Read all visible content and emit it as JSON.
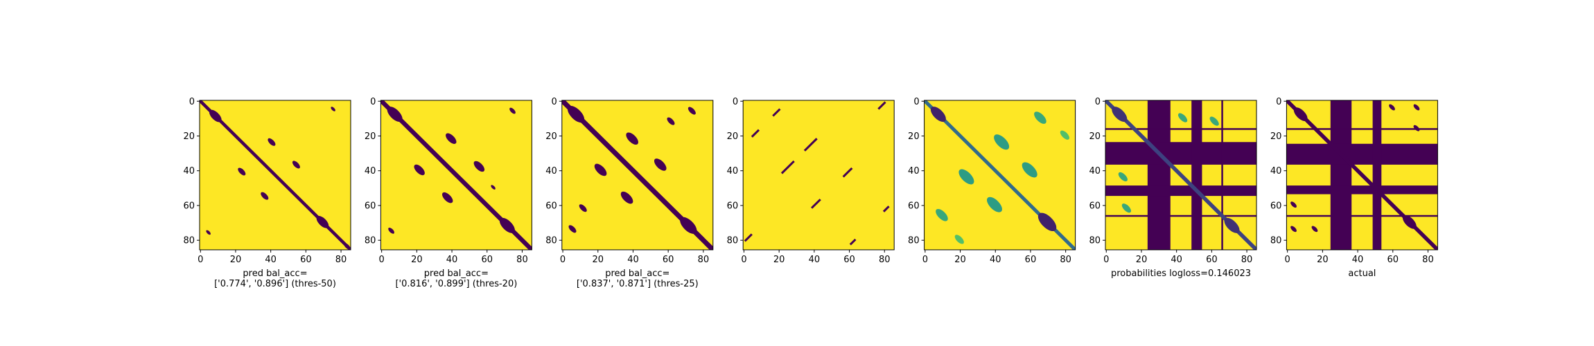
{
  "colors": {
    "low": "#440154",
    "high": "#fde725",
    "axis": "#000000"
  },
  "chart_data": [
    {
      "type": "heatmap",
      "name": "pred-thres-50",
      "xlabel": "pred bal_acc=\n['0.774', '0.896'] (thres-50)",
      "xticks": [
        0,
        20,
        40,
        60,
        80
      ],
      "yticks": [
        0,
        20,
        40,
        60,
        80
      ],
      "xlim": [
        0,
        86
      ],
      "ylim": [
        86,
        0
      ],
      "colormap": "viridis",
      "features": [
        {
          "kind": "diag",
          "offset": 0,
          "width": 1.8
        },
        {
          "kind": "blob",
          "x": 9,
          "y": 9,
          "r": 4
        },
        {
          "kind": "blob",
          "x": 70,
          "y": 70,
          "r": 4
        },
        {
          "kind": "blob",
          "x": 41,
          "y": 24,
          "r": 2.5
        },
        {
          "kind": "blob",
          "x": 24,
          "y": 41,
          "r": 2.5
        },
        {
          "kind": "blob",
          "x": 55,
          "y": 37,
          "r": 2.5
        },
        {
          "kind": "blob",
          "x": 37,
          "y": 55,
          "r": 2.5
        },
        {
          "kind": "blob",
          "x": 76,
          "y": 5,
          "r": 1.5
        },
        {
          "kind": "blob",
          "x": 5,
          "y": 76,
          "r": 1.5
        },
        {
          "kind": "blob",
          "x": 84,
          "y": 84,
          "r": 2
        }
      ]
    },
    {
      "type": "heatmap",
      "name": "pred-thres-20",
      "xlabel": "pred bal_acc=\n['0.816', '0.899'] (thres-20)",
      "xticks": [
        0,
        20,
        40,
        60,
        80
      ],
      "yticks": [
        0,
        20,
        40,
        60,
        80
      ],
      "xlim": [
        0,
        86
      ],
      "ylim": [
        86,
        0
      ],
      "colormap": "viridis",
      "features": [
        {
          "kind": "diag",
          "offset": 0,
          "width": 2.5
        },
        {
          "kind": "blob",
          "x": 8,
          "y": 8,
          "r": 5
        },
        {
          "kind": "blob",
          "x": 72,
          "y": 72,
          "r": 5
        },
        {
          "kind": "blob",
          "x": 40,
          "y": 22,
          "r": 3.5
        },
        {
          "kind": "blob",
          "x": 22,
          "y": 40,
          "r": 3.5
        },
        {
          "kind": "blob",
          "x": 56,
          "y": 38,
          "r": 3.5
        },
        {
          "kind": "blob",
          "x": 38,
          "y": 56,
          "r": 3.5
        },
        {
          "kind": "blob",
          "x": 75,
          "y": 6,
          "r": 2
        },
        {
          "kind": "blob",
          "x": 6,
          "y": 75,
          "r": 2
        },
        {
          "kind": "blob",
          "x": 64,
          "y": 50,
          "r": 1.5
        }
      ]
    },
    {
      "type": "heatmap",
      "name": "pred-thres-25",
      "xlabel": "pred bal_acc=\n['0.837', '0.871'] (thres-25)",
      "xticks": [
        0,
        20,
        40,
        60,
        80
      ],
      "yticks": [
        0,
        20,
        40,
        60,
        80
      ],
      "xlim": [
        0,
        86
      ],
      "ylim": [
        86,
        0
      ],
      "colormap": "viridis",
      "features": [
        {
          "kind": "diag",
          "offset": 0,
          "width": 2.8
        },
        {
          "kind": "blob",
          "x": 8,
          "y": 8,
          "r": 5.5
        },
        {
          "kind": "blob",
          "x": 72,
          "y": 72,
          "r": 5.5
        },
        {
          "kind": "blob",
          "x": 40,
          "y": 22,
          "r": 4
        },
        {
          "kind": "blob",
          "x": 22,
          "y": 40,
          "r": 4
        },
        {
          "kind": "blob",
          "x": 56,
          "y": 37,
          "r": 4
        },
        {
          "kind": "blob",
          "x": 37,
          "y": 56,
          "r": 4
        },
        {
          "kind": "blob",
          "x": 74,
          "y": 6,
          "r": 2.5
        },
        {
          "kind": "blob",
          "x": 6,
          "y": 74,
          "r": 2.5
        },
        {
          "kind": "blob",
          "x": 12,
          "y": 62,
          "r": 2.5
        },
        {
          "kind": "blob",
          "x": 62,
          "y": 12,
          "r": 2.5
        }
      ]
    },
    {
      "type": "heatmap",
      "name": "pred-sparse",
      "xlabel": "",
      "xticks": [
        0,
        20,
        40,
        60,
        80
      ],
      "yticks": [
        0,
        20,
        40,
        60,
        80
      ],
      "xlim": [
        0,
        86
      ],
      "ylim": [
        86,
        0
      ],
      "colormap": "viridis",
      "features": [
        {
          "kind": "seg",
          "x1": 5,
          "y1": 21,
          "x2": 9,
          "y2": 17
        },
        {
          "kind": "seg",
          "x1": 21,
          "y1": 5,
          "x2": 17,
          "y2": 9
        },
        {
          "kind": "seg",
          "x1": 35,
          "y1": 29,
          "x2": 42,
          "y2": 22
        },
        {
          "kind": "seg",
          "x1": 29,
          "y1": 35,
          "x2": 22,
          "y2": 42
        },
        {
          "kind": "seg",
          "x1": 57,
          "y1": 44,
          "x2": 62,
          "y2": 39
        },
        {
          "kind": "seg",
          "x1": 44,
          "y1": 57,
          "x2": 39,
          "y2": 62
        },
        {
          "kind": "seg",
          "x1": 77,
          "y1": 5,
          "x2": 81,
          "y2": 1
        },
        {
          "kind": "seg",
          "x1": 5,
          "y1": 77,
          "x2": 1,
          "y2": 81
        },
        {
          "kind": "seg",
          "x1": 80,
          "y1": 64,
          "x2": 83,
          "y2": 61
        },
        {
          "kind": "seg",
          "x1": 64,
          "y1": 80,
          "x2": 61,
          "y2": 83
        }
      ]
    },
    {
      "type": "heatmap",
      "name": "pred-probabilities",
      "xlabel": "",
      "xticks": [
        0,
        20,
        40,
        60,
        80
      ],
      "yticks": [
        0,
        20,
        40,
        60,
        80
      ],
      "xlim": [
        0,
        86
      ],
      "ylim": [
        86,
        0
      ],
      "colormap": "viridis",
      "features": [
        {
          "kind": "diag",
          "offset": 0,
          "width": 2,
          "level": 0.35
        },
        {
          "kind": "blob",
          "x": 8,
          "y": 8,
          "r": 5,
          "level": 0.1
        },
        {
          "kind": "blob",
          "x": 70,
          "y": 70,
          "r": 6,
          "level": 0.1
        },
        {
          "kind": "blob",
          "x": 44,
          "y": 24,
          "r": 5,
          "level": 0.55
        },
        {
          "kind": "blob",
          "x": 24,
          "y": 44,
          "r": 5,
          "level": 0.55
        },
        {
          "kind": "blob",
          "x": 60,
          "y": 40,
          "r": 5,
          "level": 0.55
        },
        {
          "kind": "blob",
          "x": 40,
          "y": 60,
          "r": 5,
          "level": 0.55
        },
        {
          "kind": "blob",
          "x": 66,
          "y": 10,
          "r": 4,
          "level": 0.6
        },
        {
          "kind": "blob",
          "x": 10,
          "y": 66,
          "r": 4,
          "level": 0.6
        },
        {
          "kind": "blob",
          "x": 80,
          "y": 20,
          "r": 3,
          "level": 0.7
        },
        {
          "kind": "blob",
          "x": 20,
          "y": 80,
          "r": 3,
          "level": 0.7
        }
      ]
    },
    {
      "type": "heatmap",
      "name": "probabilities-logloss",
      "xlabel": "probabilities logloss=0.146023",
      "xticks": [
        0,
        20,
        40,
        60,
        80
      ],
      "yticks": [
        0,
        20,
        40,
        60,
        80
      ],
      "xlim": [
        0,
        86
      ],
      "ylim": [
        86,
        0
      ],
      "colormap": "viridis",
      "features": [
        {
          "kind": "band",
          "axis": "x",
          "from": 24,
          "to": 37
        },
        {
          "kind": "band",
          "axis": "y",
          "from": 24,
          "to": 37
        },
        {
          "kind": "band",
          "axis": "x",
          "from": 49,
          "to": 55
        },
        {
          "kind": "band",
          "axis": "y",
          "from": 49,
          "to": 55
        },
        {
          "kind": "band",
          "axis": "x",
          "from": 66,
          "to": 67
        },
        {
          "kind": "band",
          "axis": "y",
          "from": 66,
          "to": 67
        },
        {
          "kind": "band",
          "axis": "y",
          "from": 16,
          "to": 17
        },
        {
          "kind": "diag",
          "offset": 0,
          "width": 2.2,
          "level": 0.2
        },
        {
          "kind": "blob",
          "x": 8,
          "y": 8,
          "r": 5,
          "level": 0.15
        },
        {
          "kind": "blob",
          "x": 72,
          "y": 72,
          "r": 5,
          "level": 0.15
        },
        {
          "kind": "blob",
          "x": 44,
          "y": 10,
          "r": 3,
          "level": 0.6
        },
        {
          "kind": "blob",
          "x": 10,
          "y": 44,
          "r": 3,
          "level": 0.6
        },
        {
          "kind": "blob",
          "x": 62,
          "y": 12,
          "r": 3,
          "level": 0.6
        },
        {
          "kind": "blob",
          "x": 12,
          "y": 62,
          "r": 3,
          "level": 0.6
        }
      ]
    },
    {
      "type": "heatmap",
      "name": "actual",
      "xlabel": "actual",
      "xticks": [
        0,
        20,
        40,
        60,
        80
      ],
      "yticks": [
        0,
        20,
        40,
        60,
        80
      ],
      "xlim": [
        0,
        86
      ],
      "ylim": [
        86,
        0
      ],
      "colormap": "viridis",
      "features": [
        {
          "kind": "band",
          "axis": "x",
          "from": 25,
          "to": 37
        },
        {
          "kind": "band",
          "axis": "y",
          "from": 25,
          "to": 37
        },
        {
          "kind": "band",
          "axis": "x",
          "from": 49,
          "to": 54
        },
        {
          "kind": "band",
          "axis": "y",
          "from": 49,
          "to": 54
        },
        {
          "kind": "band",
          "axis": "y",
          "from": 16,
          "to": 17
        },
        {
          "kind": "band",
          "axis": "y",
          "from": 66,
          "to": 67
        },
        {
          "kind": "diag",
          "offset": 0,
          "width": 2.2
        },
        {
          "kind": "blob",
          "x": 8,
          "y": 8,
          "r": 4.5
        },
        {
          "kind": "blob",
          "x": 70,
          "y": 70,
          "r": 4.5
        },
        {
          "kind": "blob",
          "x": 60,
          "y": 4,
          "r": 2
        },
        {
          "kind": "blob",
          "x": 4,
          "y": 60,
          "r": 2
        },
        {
          "kind": "blob",
          "x": 74,
          "y": 4,
          "r": 2
        },
        {
          "kind": "blob",
          "x": 4,
          "y": 74,
          "r": 2
        },
        {
          "kind": "blob",
          "x": 16,
          "y": 74,
          "r": 2
        },
        {
          "kind": "blob",
          "x": 74,
          "y": 16,
          "r": 2
        }
      ]
    }
  ]
}
